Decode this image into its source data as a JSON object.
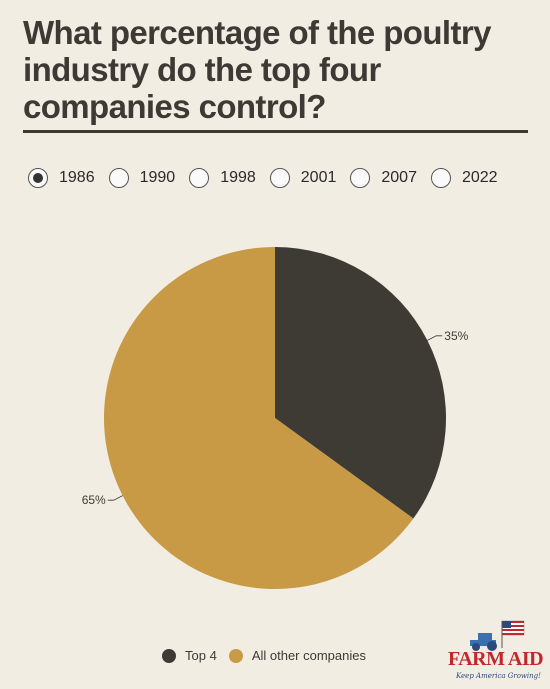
{
  "title": "What percentage of the poultry industry do the top four companies control?",
  "years": [
    {
      "label": "1986",
      "selected": true
    },
    {
      "label": "1990",
      "selected": false
    },
    {
      "label": "1998",
      "selected": false
    },
    {
      "label": "2001",
      "selected": false
    },
    {
      "label": "2007",
      "selected": false
    },
    {
      "label": "2022",
      "selected": false
    }
  ],
  "chart_data": {
    "type": "pie",
    "selected_year": "1986",
    "slices": [
      {
        "name": "Top 4",
        "value": 35,
        "label": "35%",
        "color": "#3e3a34"
      },
      {
        "name": "All other companies",
        "value": 65,
        "label": "65%",
        "color": "#c99a45"
      }
    ],
    "legend": {
      "position": "bottom",
      "entries": [
        "Top 4",
        "All other companies"
      ]
    }
  },
  "logo": {
    "text": "FARM AID",
    "tagline": "Keep America Growing!",
    "brand_color": "#c0282d"
  },
  "colors": {
    "background": "#f2ede3",
    "text": "#3d3a35"
  }
}
